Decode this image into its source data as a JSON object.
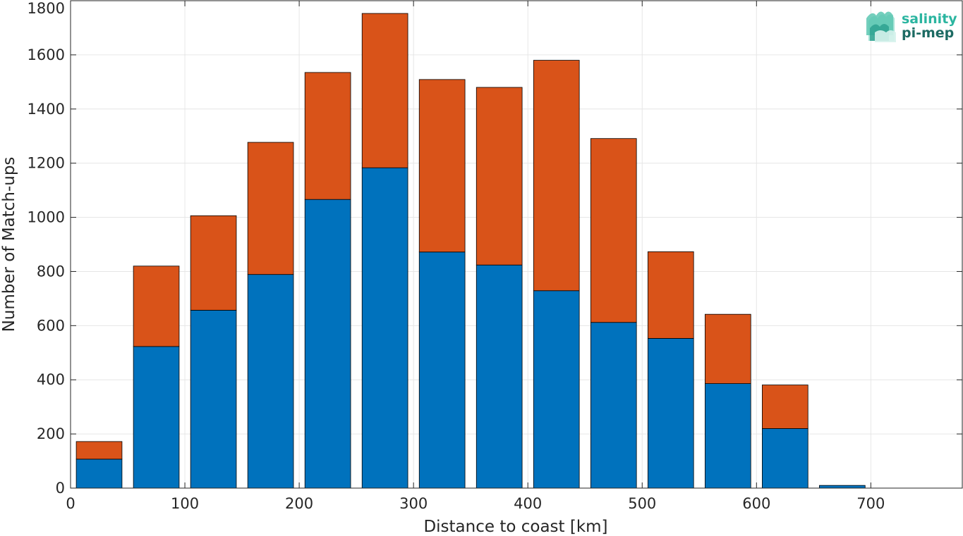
{
  "chart_data": {
    "type": "bar",
    "stacked": true,
    "x": [
      25,
      75,
      125,
      175,
      225,
      275,
      325,
      375,
      425,
      475,
      525,
      575,
      625,
      675,
      725
    ],
    "series": [
      {
        "color": "#0072BD",
        "values": [
          107,
          523,
          657,
          789,
          1066,
          1183,
          872,
          824,
          729,
          612,
          553,
          386,
          220,
          10,
          0
        ]
      },
      {
        "color": "#D95319",
        "values": [
          65,
          297,
          349,
          488,
          469,
          570,
          637,
          656,
          851,
          679,
          320,
          256,
          161,
          0,
          0
        ]
      }
    ],
    "xlim": [
      0,
      780
    ],
    "ylim": [
      0,
      1800
    ],
    "xticks": [
      "0",
      "100",
      "200",
      "300",
      "400",
      "500",
      "600",
      "700"
    ],
    "yticks": [
      "0",
      "200",
      "400",
      "600",
      "800",
      "1000",
      "1200",
      "1400",
      "1600",
      "1800"
    ],
    "xlabel": "Distance to coast [km]",
    "ylabel": "Number of Match-ups",
    "grid": true
  },
  "logo": {
    "line1": "salinity",
    "line2": "pi-mep",
    "line1_color": "#2bb5a0",
    "line2_color": "#1d6b63"
  }
}
